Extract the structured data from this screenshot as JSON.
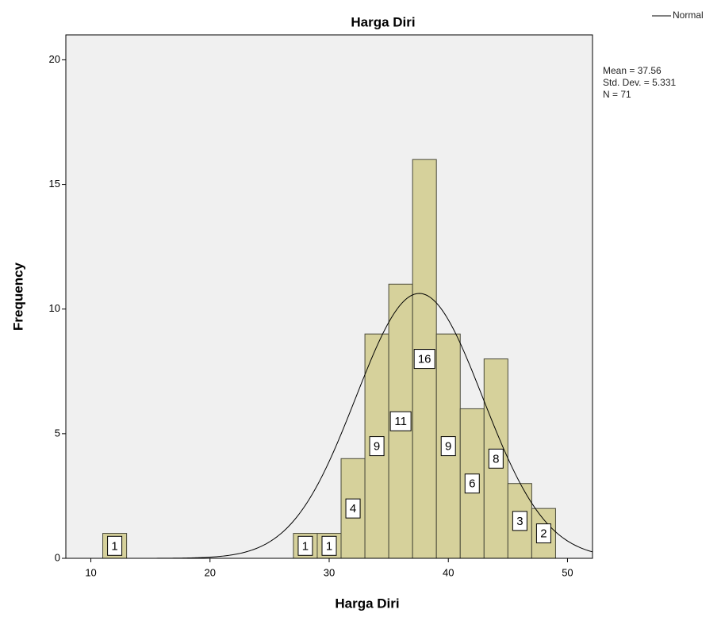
{
  "chart_data": {
    "type": "histogram",
    "title": "Harga Diri",
    "x_label": "Harga Diri",
    "y_label": "Frequency",
    "bins": [
      11,
      13,
      15,
      17,
      19,
      21,
      23,
      25,
      27,
      29,
      31,
      33,
      35,
      37,
      39,
      41,
      43,
      45,
      47,
      49
    ],
    "values": [
      1,
      0,
      0,
      0,
      0,
      0,
      0,
      0,
      1,
      1,
      4,
      9,
      11,
      16,
      9,
      6,
      8,
      3,
      2
    ],
    "color": "#d6d19b",
    "xlim": [
      7.9,
      52.1
    ],
    "xticks": [
      10,
      20,
      30,
      40,
      50
    ],
    "ylim": [
      0,
      21
    ],
    "yticks": [
      0,
      5,
      10,
      15,
      20
    ],
    "curve": {
      "name": "Normal",
      "color": "#000000"
    },
    "stats": [
      {
        "value": 37.56,
        "label": "Mean = 37.56"
      },
      {
        "value": 5.331,
        "label": "Std. Dev. = 5.331"
      },
      {
        "value": 71,
        "label": "N = 71"
      }
    ],
    "legend": "top-right"
  }
}
